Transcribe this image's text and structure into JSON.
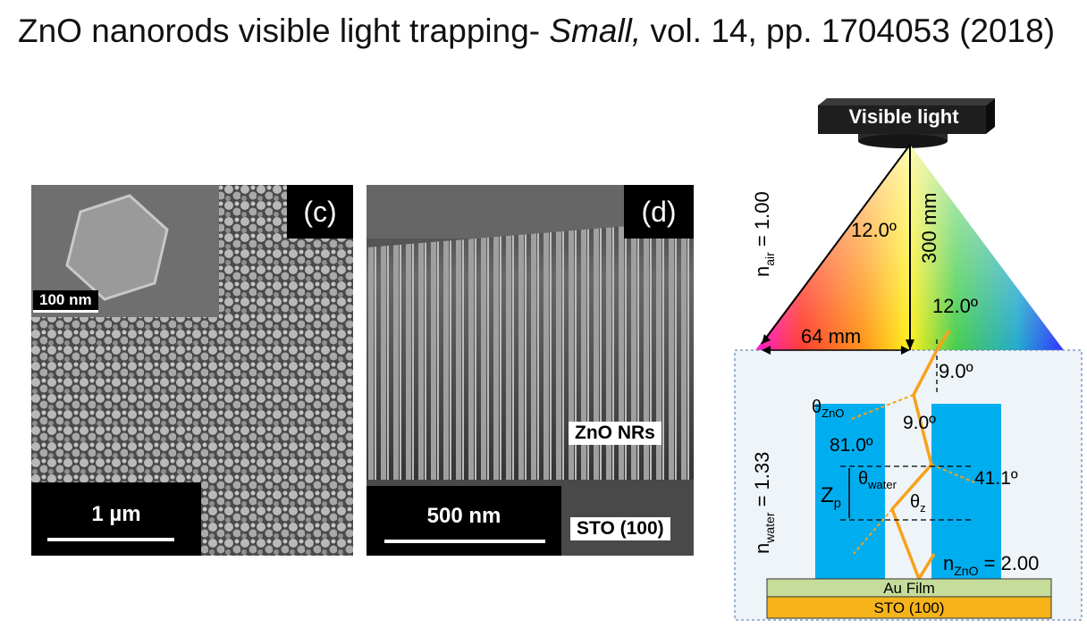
{
  "title": {
    "main": "ZnO nanorods visible light trapping- ",
    "journal": "Small,",
    "rest": " vol. 14, pp. 1704053 (2018)"
  },
  "panel_c": {
    "label": "(c)",
    "inset_scale": "100 nm",
    "scale": "1 µm"
  },
  "panel_d": {
    "label": "(d)",
    "scale": "500 nm",
    "tag_nrs": "ZnO NRs",
    "tag_sto": "STO (100)"
  },
  "schematic": {
    "lamp_label": "Visible light",
    "n_air": "n",
    "n_air_sub": "air",
    "n_air_val": " = 1.00",
    "angle_top": "12.0º",
    "height": "300 mm",
    "width": "64 mm",
    "angle_incident": "12.0º",
    "angle_refract": "9.0º",
    "theta_zno": "θ",
    "theta_zno_sub": "ZnO",
    "angle_9b": "9.0º",
    "angle_81": "81.0º",
    "theta_water": "θ",
    "theta_water_sub": "water",
    "theta_z": "θ",
    "theta_z_sub": "z",
    "angle_41": "41.1º",
    "zp": "Z",
    "zp_sub": "p",
    "n_water": "n",
    "n_water_sub": "water",
    "n_water_val": " = 1.33",
    "n_zno": "n",
    "n_zno_sub": "ZnO",
    "n_zno_val": " = 2.00",
    "au_film": "Au Film",
    "sto": "STO (100)"
  },
  "colors": {
    "rod": "#00aeef",
    "beam": "#f7a21b",
    "au": "#c5dc9a",
    "sto": "#f6b41a"
  }
}
